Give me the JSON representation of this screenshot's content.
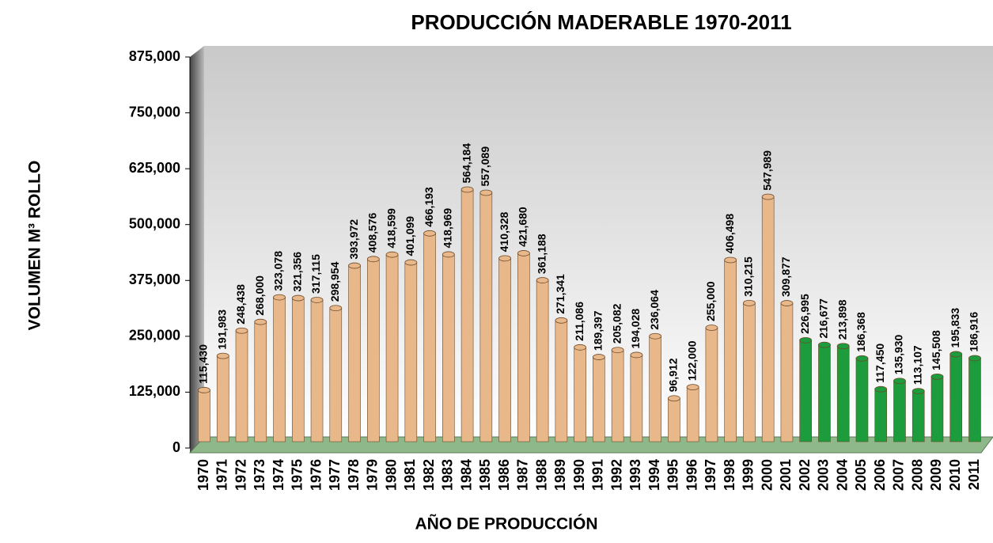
{
  "chart_data": {
    "type": "bar",
    "title": "PRODUCCIÓN MADERABLE 1970-2011",
    "ylabel": "VOLUMEN M³ ROLLO",
    "xlabel": "AÑO DE PRODUCCIÓN",
    "categories": [
      "1970",
      "1971",
      "1972",
      "1973",
      "1974",
      "1975",
      "1976",
      "1977",
      "1978",
      "1979",
      "1980",
      "1981",
      "1982",
      "1983",
      "1984",
      "1985",
      "1986",
      "1987",
      "1988",
      "1989",
      "1990",
      "1991",
      "1992",
      "1993",
      "1994",
      "1995",
      "1996",
      "1997",
      "1998",
      "1999",
      "2000",
      "2001",
      "2002",
      "2003",
      "2004",
      "2005",
      "2006",
      "2007",
      "2008",
      "2009",
      "2010",
      "2011"
    ],
    "values": [
      115430,
      191983,
      248438,
      268000,
      323078,
      321356,
      317115,
      298954,
      393972,
      408576,
      418599,
      401099,
      466193,
      418969,
      564184,
      557089,
      410328,
      421680,
      361188,
      271341,
      211086,
      189397,
      205082,
      194028,
      236064,
      96912,
      122000,
      255000,
      406498,
      310215,
      547989,
      309877,
      226995,
      216677,
      213898,
      186368,
      117450,
      135930,
      113107,
      145508,
      195833,
      186916
    ],
    "value_labels": [
      "115,430",
      "191,983",
      "248,438",
      "268,000",
      "323,078",
      "321,356",
      "317,115",
      "298,954",
      "393,972",
      "408,576",
      "418,599",
      "401,099",
      "466,193",
      "418,969",
      "564,184",
      "557,089",
      "410,328",
      "421,680",
      "361,188",
      "271,341",
      "211,086",
      "189,397",
      "205,082",
      "194,028",
      "236,064",
      "96,912",
      "122,000",
      "255,000",
      "406,498",
      "310,215",
      "547,989",
      "309,877",
      "226,995",
      "216,677",
      "213,898",
      "186,368",
      "117,450",
      "135,930",
      "113,107",
      "145,508",
      "195,833",
      "186,916"
    ],
    "colors": [
      "#e9b88a",
      "#e9b88a",
      "#e9b88a",
      "#e9b88a",
      "#e9b88a",
      "#e9b88a",
      "#e9b88a",
      "#e9b88a",
      "#e9b88a",
      "#e9b88a",
      "#e9b88a",
      "#e9b88a",
      "#e9b88a",
      "#e9b88a",
      "#e9b88a",
      "#e9b88a",
      "#e9b88a",
      "#e9b88a",
      "#e9b88a",
      "#e9b88a",
      "#e9b88a",
      "#e9b88a",
      "#e9b88a",
      "#e9b88a",
      "#e9b88a",
      "#e9b88a",
      "#e9b88a",
      "#e9b88a",
      "#e9b88a",
      "#e9b88a",
      "#e9b88a",
      "#e9b88a",
      "#1c9c3c",
      "#1c9c3c",
      "#1c9c3c",
      "#1c9c3c",
      "#1c9c3c",
      "#1c9c3c",
      "#1c9c3c",
      "#1c9c3c",
      "#1c9c3c",
      "#1c9c3c"
    ],
    "ylim": [
      0,
      875000
    ],
    "yticks": [
      {
        "value": 0,
        "label": "0"
      },
      {
        "value": 125000,
        "label": "125,000"
      },
      {
        "value": 250000,
        "label": "250,000"
      },
      {
        "value": 375000,
        "label": "375,000"
      },
      {
        "value": 500000,
        "label": "500,000"
      },
      {
        "value": 625000,
        "label": "625,000"
      },
      {
        "value": 750000,
        "label": "750,000"
      },
      {
        "value": 875000,
        "label": "875,000"
      }
    ]
  }
}
